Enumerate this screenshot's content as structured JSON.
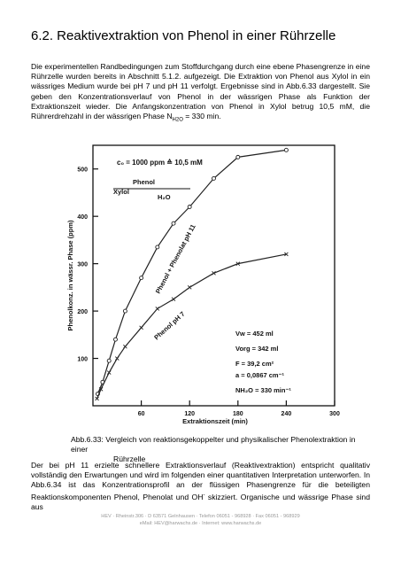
{
  "header": {
    "title": "6.2. Reaktivextraktion von Phenol in einer Rührzelle"
  },
  "paragraphs": [
    {
      "parts": [
        "Die experimentellen Randbedingungen zum Stoffdurchgang durch eine ebene Phasengrenze in eine Rührzelle wurden bereits in Abschnitt 5.1.2. aufgezeigt. Die Extraktion von Phenol aus Xylol in ein wässriges Medium wurde bei pH 7 und pH 11 verfolgt. Ergebnisse sind in Abb.6.33 dargestellt. Sie geben den Konzentrationsverlauf von Phenol in der wässrigen Phase als Funktion der Extraktionszeit wieder. Die Anfangskonzentration von Phenol in Xylol betrug 10,5 mM, die Rührerdrehzahl in der wässrigen Phase N",
        "H2O",
        " = 330 min."
      ]
    },
    {
      "parts": [
        "Der bei pH 11 erzielte schnellere Extraktionsverlauf (Reaktivextraktion) entspricht qualitativ vollständig den Erwartungen und wird im folgenden einer quantitativen Interpretation unterworfen. In Abb.6.34 ist das Konzentrationsprofil an der flüssigen Phasengrenze für die beteiligten Reaktionskomponenten Phenol, Phenolat und OH",
        "-",
        " skizziert. Organische und wässrige Phase sind aus"
      ]
    }
  ],
  "chart_data": {
    "type": "scatter",
    "y_label": "Phenolkonz. in wässr. Phase (ppm)",
    "x_label": "Extraktionszeit (min)",
    "xlim": [
      0,
      300
    ],
    "ylim": [
      0,
      550
    ],
    "xticks": [
      60,
      120,
      180,
      240,
      300
    ],
    "yticks": [
      100,
      200,
      300,
      400,
      500
    ],
    "series": [
      {
        "name": "Phenol + Phenolat pH 11",
        "marker": "circle",
        "color": "#222",
        "x": [
          6,
          12,
          20,
          28,
          40,
          60,
          80,
          100,
          120,
          150,
          180,
          240
        ],
        "values": [
          25,
          50,
          95,
          140,
          200,
          270,
          335,
          385,
          420,
          480,
          525,
          540
        ]
      },
      {
        "name": "Phenol pH 7",
        "marker": "cross",
        "color": "#222",
        "x": [
          5,
          10,
          20,
          30,
          40,
          60,
          80,
          100,
          120,
          150,
          180,
          240
        ],
        "values": [
          15,
          35,
          70,
          100,
          125,
          165,
          205,
          225,
          250,
          280,
          300,
          320
        ]
      }
    ],
    "annotations": [
      "c₀ = 1000 ppm ≙ 10,5 mM",
      "Phenol",
      "Xylol",
      "H₂O",
      "Vw = 452 ml",
      "Vorg = 342 ml",
      "F = 39,2 cm²",
      "a = 0,0867 cm⁻¹",
      "NH₂O = 330 min⁻¹"
    ]
  },
  "caption": {
    "label": "Abb.6.33:",
    "text": "Vergleich von reaktionsgekoppelter und physikalischer Phenolextraktion in einer",
    "text2": "Rührzelle"
  },
  "footer": {
    "line1": "HEV  ·  Rheinstr.306  ·  D 63571 Gelnhausen  ·  Telefon 06051 - 968928  ·  Fax 06051 - 968929",
    "line2": "eMail: HEV@harwachs.de  ·  Internet: www.harwachs.de"
  }
}
